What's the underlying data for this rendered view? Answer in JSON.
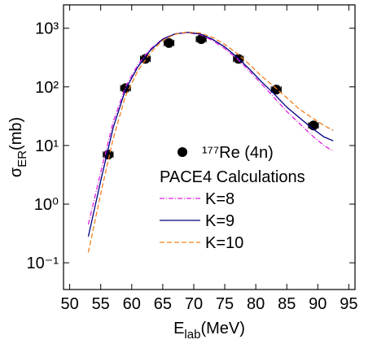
{
  "chart_data": {
    "type": "line",
    "yscale": "log",
    "xlim": [
      49,
      96
    ],
    "ylim": [
      0.035,
      2500
    ],
    "xticks": [
      50,
      55,
      60,
      65,
      70,
      75,
      80,
      85,
      90,
      95
    ],
    "yticks": [
      {
        "value": 0.1,
        "label": "10⁻¹"
      },
      {
        "value": 1,
        "label": "10⁰"
      },
      {
        "value": 10,
        "label": "10¹"
      },
      {
        "value": 100,
        "label": "10²"
      },
      {
        "value": 1000,
        "label": "10³"
      }
    ],
    "xlabel": {
      "symbol": "E",
      "subscript": "lab",
      "unit": "(MeV)"
    },
    "ylabel": {
      "symbol": "σ",
      "subscript": "ER",
      "unit": "(mb)"
    },
    "legend_title": "PACE4 Calculations",
    "points": {
      "name": "¹⁷⁷Re (4n)",
      "color": "#000000",
      "x": [
        56.2,
        59,
        62.2,
        66,
        71.2,
        77.2,
        83.3,
        89.3
      ],
      "values": [
        7,
        95,
        300,
        560,
        650,
        300,
        90,
        22
      ],
      "x_errors": [
        0.8,
        0.8,
        0.8,
        0.8,
        0.8,
        0.8,
        0.8,
        0.8
      ]
    },
    "x": [
      53,
      55,
      57,
      59,
      61,
      63,
      65,
      67,
      69,
      71,
      73,
      75,
      77,
      79,
      81,
      83,
      85,
      87,
      89,
      91,
      92.5
    ],
    "series": [
      {
        "name": "K=8",
        "color": "#e020e0",
        "dash": "6 2 1 2",
        "values": [
          0.45,
          3.5,
          25,
          100,
          240,
          440,
          660,
          800,
          840,
          780,
          620,
          450,
          300,
          185,
          110,
          65,
          38,
          24,
          15,
          10,
          8
        ]
      },
      {
        "name": "K=9",
        "color": "#000080",
        "dash": "none",
        "values": [
          0.28,
          2.5,
          20,
          90,
          220,
          420,
          650,
          800,
          850,
          800,
          650,
          480,
          320,
          200,
          120,
          75,
          45,
          30,
          20,
          14,
          12
        ]
      },
      {
        "name": "K=10",
        "color": "#f08020",
        "dash": "6 3",
        "values": [
          0.15,
          1.5,
          13,
          70,
          190,
          380,
          620,
          790,
          860,
          830,
          700,
          530,
          370,
          240,
          150,
          100,
          65,
          42,
          30,
          22,
          18
        ]
      }
    ]
  }
}
